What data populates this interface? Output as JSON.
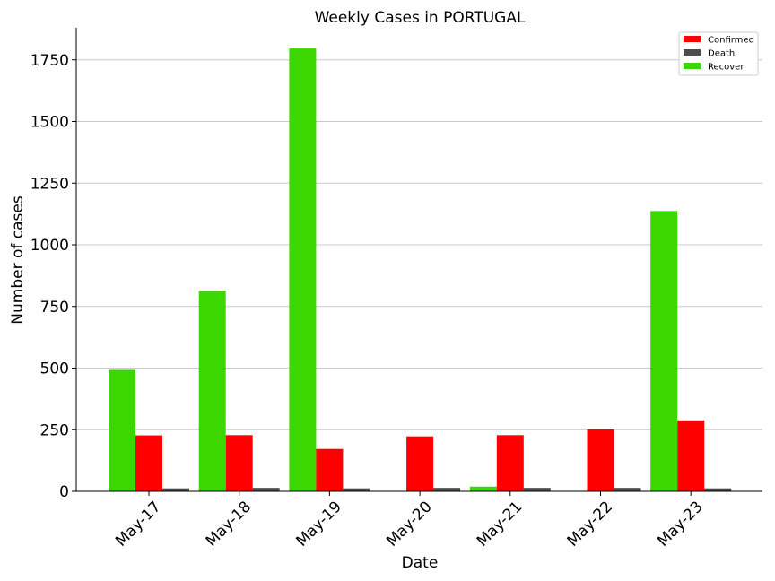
{
  "chart_data": {
    "type": "bar",
    "title": "Weekly Cases in PORTUGAL",
    "xlabel": "Date",
    "ylabel": "Number of cases",
    "categories": [
      "May-17",
      "May-18",
      "May-19",
      "May-20",
      "May-21",
      "May-22",
      "May-23"
    ],
    "series": [
      {
        "name": "Recover",
        "color": "#3cd700",
        "values": [
          493,
          813,
          1796,
          0,
          19,
          0,
          1137
        ]
      },
      {
        "name": "Confirmed",
        "color": "#ff0000",
        "values": [
          227,
          228,
          172,
          223,
          228,
          251,
          288
        ]
      },
      {
        "name": "Death",
        "color": "#4d4d4d",
        "values": [
          12,
          14,
          12,
          14,
          14,
          14,
          12
        ]
      }
    ],
    "legend_order": [
      "Confirmed",
      "Death",
      "Recover"
    ],
    "legend_position": "top-right",
    "yticks": [
      0,
      250,
      500,
      750,
      1000,
      1250,
      1500,
      1750
    ],
    "ylim": [
      0,
      1880
    ],
    "grid": "y-only"
  }
}
